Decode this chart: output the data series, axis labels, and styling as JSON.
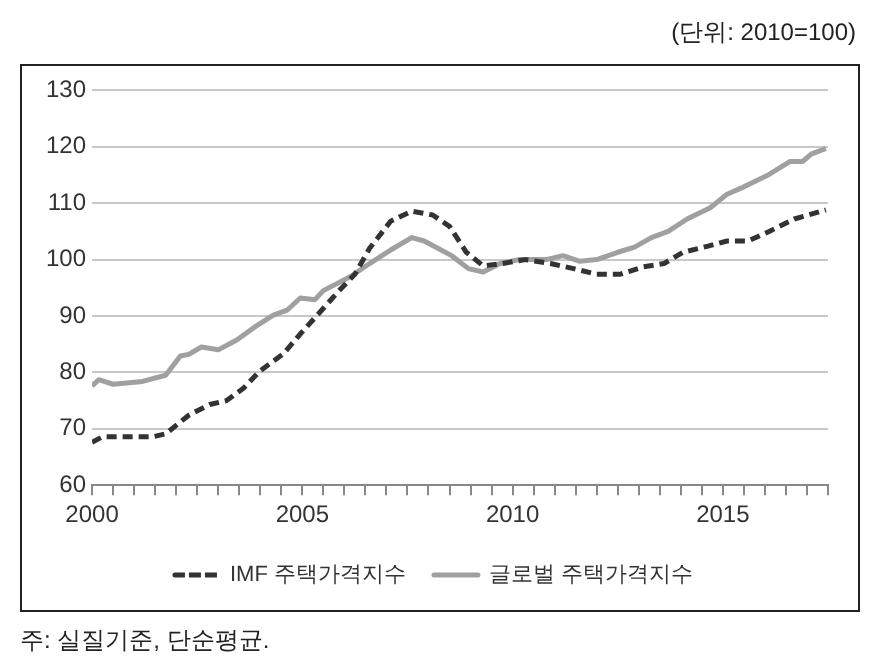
{
  "chart_data": {
    "type": "line",
    "annotations": [
      "(단위: 2010=100)",
      "주: 실질기준, 단순평균."
    ],
    "xlim": [
      2000,
      2017.5
    ],
    "xticks": [
      2000,
      {
        "value": 2000.5,
        "label": null
      },
      {
        "value": 2001,
        "label": null
      },
      {
        "value": 2001.5,
        "label": null
      },
      {
        "value": 2002,
        "label": null
      },
      {
        "value": 2002.5,
        "label": null
      },
      {
        "value": 2003,
        "label": null
      },
      {
        "value": 2003.5,
        "label": null
      },
      {
        "value": 2004,
        "label": null
      },
      {
        "value": 2004.5,
        "label": null
      },
      2005,
      {
        "value": 2005.5,
        "label": null
      },
      {
        "value": 2006,
        "label": null
      },
      {
        "value": 2006.5,
        "label": null
      },
      {
        "value": 2007,
        "label": null
      },
      {
        "value": 2007.5,
        "label": null
      },
      {
        "value": 2008,
        "label": null
      },
      {
        "value": 2008.5,
        "label": null
      },
      {
        "value": 2009,
        "label": null
      },
      {
        "value": 2009.5,
        "label": null
      },
      2010,
      {
        "value": 2010.5,
        "label": null
      },
      {
        "value": 2011,
        "label": null
      },
      {
        "value": 2011.5,
        "label": null
      },
      {
        "value": 2012,
        "label": null
      },
      {
        "value": 2012.5,
        "label": null
      },
      {
        "value": 2013,
        "label": null
      },
      {
        "value": 2013.5,
        "label": null
      },
      {
        "value": 2014,
        "label": null
      },
      {
        "value": 2014.5,
        "label": null
      },
      2015,
      {
        "value": 2015.5,
        "label": null
      },
      {
        "value": 2016,
        "label": null
      },
      {
        "value": 2016.5,
        "label": null
      },
      {
        "value": 2017,
        "label": null
      },
      {
        "value": 2017.5,
        "label": null
      }
    ],
    "ylim": [
      60,
      130
    ],
    "yticks": [
      60,
      70,
      80,
      90,
      100,
      110,
      120,
      130
    ],
    "grid": "y",
    "legend": "bottom",
    "marker": "none",
    "series": [
      {
        "name": "IMF 주택가격지수",
        "color": "#333333",
        "line_style": "dashed",
        "x": [
          2000,
          2000.25,
          2001.45,
          2001.75,
          2002.3,
          2002.8,
          2003.2,
          2003.6,
          2004.0,
          2004.55,
          2004.95,
          2005.35,
          2005.85,
          2006.25,
          2006.6,
          2007.1,
          2007.6,
          2008.1,
          2008.5,
          2008.9,
          2009.3,
          2009.75,
          2010.3,
          2010.9,
          2011.45,
          2012.0,
          2012.55,
          2013.1,
          2013.6,
          2014.05,
          2014.65,
          2015.1,
          2015.6,
          2016.1,
          2016.7,
          2017.45
        ],
        "values": [
          67.6,
          68.6,
          68.6,
          69.1,
          72.4,
          74.3,
          75.0,
          77.2,
          80.3,
          83.3,
          86.8,
          90.1,
          94.3,
          97.4,
          102.0,
          106.8,
          108.6,
          107.9,
          105.9,
          101.3,
          98.9,
          99.3,
          100.0,
          99.3,
          98.4,
          97.4,
          97.4,
          98.7,
          99.3,
          101.3,
          102.4,
          103.3,
          103.3,
          105.0,
          107.2,
          108.8
        ]
      },
      {
        "name": "글로벌 주택가격지수",
        "color": "#a0a0a0",
        "line_style": "solid",
        "x": [
          2000,
          2000.16,
          2000.5,
          2001.2,
          2001.75,
          2002.1,
          2002.3,
          2002.6,
          2003.0,
          2003.45,
          2003.9,
          2004.3,
          2004.65,
          2004.95,
          2005.3,
          2005.5,
          2006.15,
          2006.6,
          2007.1,
          2007.6,
          2007.9,
          2008.55,
          2008.95,
          2009.3,
          2009.7,
          2010.15,
          2010.8,
          2011.2,
          2011.6,
          2012.0,
          2012.5,
          2012.9,
          2013.3,
          2013.7,
          2014.15,
          2014.7,
          2015.1,
          2015.5,
          2016.1,
          2016.6,
          2016.9,
          2017.1,
          2017.45
        ],
        "values": [
          77.6,
          78.7,
          77.9,
          78.4,
          79.5,
          82.9,
          83.2,
          84.5,
          84.0,
          85.8,
          88.2,
          90.1,
          91.1,
          93.2,
          92.9,
          94.5,
          97.0,
          99.3,
          101.7,
          103.9,
          103.3,
          100.7,
          98.4,
          97.8,
          99.3,
          100.0,
          100.0,
          100.7,
          99.7,
          100.0,
          101.3,
          102.2,
          103.9,
          105.0,
          107.2,
          109.2,
          111.6,
          112.9,
          115.1,
          117.4,
          117.4,
          118.7,
          119.7
        ]
      }
    ]
  }
}
